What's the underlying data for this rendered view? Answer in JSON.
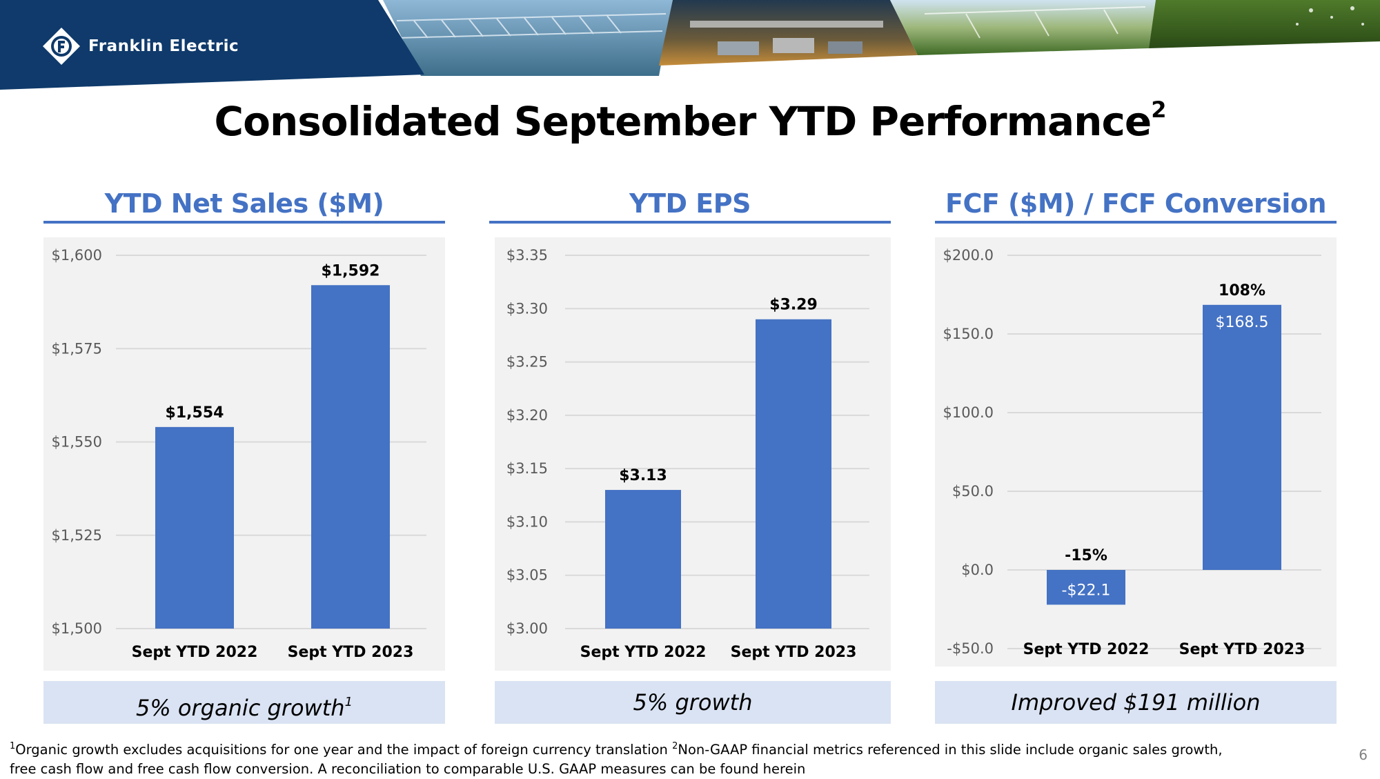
{
  "header": {
    "company": "Franklin Electric",
    "title": "Consolidated September YTD Performance",
    "title_sup": "2"
  },
  "colors": {
    "navy": "#0f3a6b",
    "accent": "#4472C4",
    "caption_bg": "#dae3f3",
    "chart_bg": "#f2f2f2"
  },
  "chart_data": [
    {
      "type": "bar",
      "title": "YTD Net Sales ($M)",
      "categories": [
        "Sept YTD 2022",
        "Sept YTD 2023"
      ],
      "values": [
        1554,
        1592
      ],
      "data_labels": [
        "$1,554",
        "$1,592"
      ],
      "ylim": [
        1500,
        1600
      ],
      "yticks": [
        1500,
        1525,
        1550,
        1575,
        1600
      ],
      "ytick_labels": [
        "$1,500",
        "$1,525",
        "$1,550",
        "$1,575",
        "$1,600"
      ],
      "grid": true
    },
    {
      "type": "bar",
      "title": "YTD EPS",
      "categories": [
        "Sept YTD 2022",
        "Sept YTD 2023"
      ],
      "values": [
        3.13,
        3.29
      ],
      "data_labels": [
        "$3.13",
        "$3.29"
      ],
      "ylim": [
        3.0,
        3.35
      ],
      "yticks": [
        3.0,
        3.05,
        3.1,
        3.15,
        3.2,
        3.25,
        3.3,
        3.35
      ],
      "ytick_labels": [
        "$3.00",
        "$3.05",
        "$3.10",
        "$3.15",
        "$3.20",
        "$3.25",
        "$3.30",
        "$3.35"
      ],
      "grid": true
    },
    {
      "type": "bar",
      "title": "FCF ($M) / FCF Conversion",
      "categories": [
        "Sept YTD 2022",
        "Sept YTD 2023"
      ],
      "values": [
        -22.1,
        168.5
      ],
      "data_labels": [
        "-$22.1",
        "$168.5"
      ],
      "conversion_labels": [
        "-15%",
        "108%"
      ],
      "ylim": [
        -50,
        200
      ],
      "yticks": [
        -50,
        0,
        50,
        100,
        150,
        200
      ],
      "ytick_labels": [
        "-$50.0",
        "$0.0",
        "$50.0",
        "$100.0",
        "$150.0",
        "$200.0"
      ],
      "grid": true
    }
  ],
  "captions": {
    "net_sales": "5% organic growth",
    "net_sales_sup": "1",
    "eps": "5% growth",
    "fcf": "Improved $191 million"
  },
  "footnote": {
    "sup1": "1",
    "text1": "Organic growth excludes acquisitions for one year and the impact of foreign currency translation",
    "sup2": "2",
    "text2": "Non-GAAP financial metrics referenced in this slide include organic sales growth, free cash flow and free cash flow conversion. A reconciliation to comparable U.S. GAAP measures can be found herein"
  },
  "page_number": "6"
}
